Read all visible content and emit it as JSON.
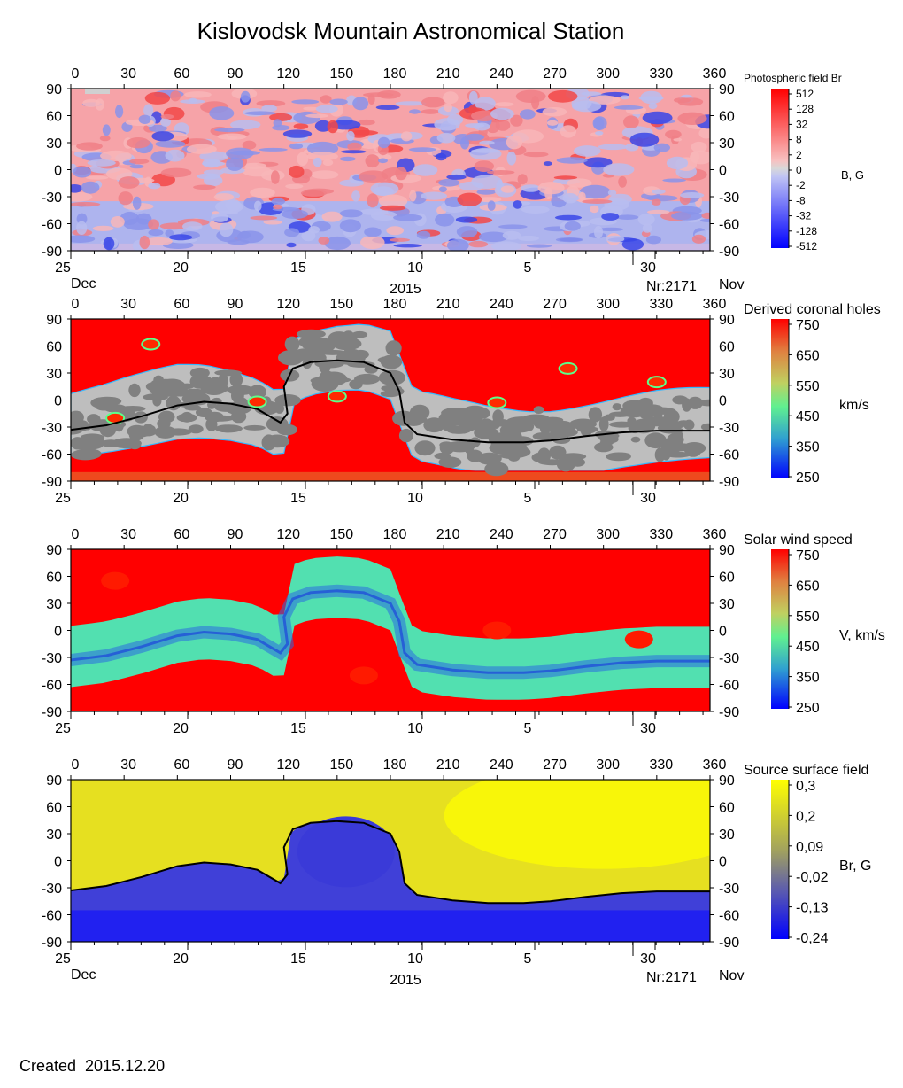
{
  "title": "Kislovodsk Mountain Astronomical Station",
  "created": "Created  2015.12.20",
  "axes": {
    "top_ticks": [
      "0",
      "30",
      "60",
      "90",
      "120",
      "150",
      "180",
      "210",
      "240",
      "270",
      "300",
      "330",
      "360"
    ],
    "lat_ticks": [
      "90",
      "60",
      "30",
      "0",
      "-30",
      "-60",
      "-90"
    ],
    "date_ticks": [
      "25",
      "20",
      "15",
      "10",
      "5",
      "30"
    ],
    "date_positions_deg": [
      0,
      22,
      44,
      66,
      88,
      110
    ],
    "month_left": "Dec",
    "month_right": "Nov",
    "year": "2015",
    "rotation": "Nr:2171"
  },
  "chart_data": [
    {
      "type": "heatmap",
      "title": "Photospheric field Br",
      "colorbar_label": "B, G",
      "colorbar_ticks": [
        "512",
        "128",
        "32",
        "8",
        "2",
        "0",
        "-2",
        "-8",
        "-32",
        "-128",
        "-512"
      ],
      "xlim": [
        0,
        360
      ],
      "ylim": [
        -90,
        90
      ],
      "show_footer": true,
      "colors": {
        "pos": "#ff0000",
        "zero": "#d8d8d8",
        "neg": "#0000ff"
      }
    },
    {
      "type": "heatmap",
      "title": "Derived coronal holes",
      "colorbar_label": "km/s",
      "colorbar_ticks": [
        "750",
        "650",
        "550",
        "450",
        "350",
        "250"
      ],
      "xlim": [
        0,
        360
      ],
      "ylim": [
        -90,
        90
      ],
      "show_footer": false,
      "neutral_line": true
    },
    {
      "type": "heatmap",
      "title": "Solar wind speed",
      "colorbar_label": "V, km/s",
      "colorbar_ticks": [
        "750",
        "650",
        "550",
        "450",
        "350",
        "250"
      ],
      "xlim": [
        0,
        360
      ],
      "ylim": [
        -90,
        90
      ],
      "show_footer": false
    },
    {
      "type": "heatmap",
      "title": "Source surface field",
      "colorbar_label": "Br, G",
      "colorbar_ticks": [
        "0,3",
        "0,2",
        "0,09",
        "-0,02",
        "-0,13",
        "-0,24"
      ],
      "xlim": [
        0,
        360
      ],
      "ylim": [
        -90,
        90
      ],
      "show_footer": true,
      "neutral_line": true
    }
  ],
  "neutral_line": {
    "lon": [
      0,
      20,
      40,
      60,
      75,
      90,
      105,
      118,
      122,
      120,
      125,
      135,
      150,
      165,
      180,
      185,
      188,
      195,
      215,
      235,
      255,
      270,
      290,
      310,
      330,
      360
    ],
    "lat": [
      -33,
      -28,
      -18,
      -6,
      -2,
      -4,
      -10,
      -25,
      -15,
      15,
      35,
      42,
      44,
      42,
      30,
      10,
      -25,
      -38,
      -44,
      -47,
      -47,
      -45,
      -40,
      -36,
      -34,
      -34
    ]
  }
}
